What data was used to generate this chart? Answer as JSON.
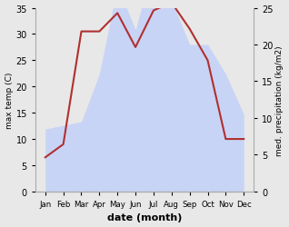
{
  "months": [
    "Jan",
    "Feb",
    "Mar",
    "Apr",
    "May",
    "Jun",
    "Jul",
    "Aug",
    "Sep",
    "Oct",
    "Nov",
    "Dec"
  ],
  "temperature": [
    6.5,
    9.0,
    30.5,
    30.5,
    34.0,
    27.5,
    34.5,
    36.0,
    31.0,
    25.0,
    10.0,
    10.0
  ],
  "precipitation": [
    8.5,
    9.0,
    9.5,
    16.0,
    28.0,
    22.0,
    31.0,
    26.0,
    20.0,
    20.0,
    16.0,
    10.5
  ],
  "temp_color": "#b03030",
  "precip_fill_color": "#c8d4f5",
  "precip_edge_color": "#b0bcee",
  "temp_ylim": [
    0,
    35
  ],
  "precip_ylim": [
    0,
    25
  ],
  "temp_yticks": [
    0,
    5,
    10,
    15,
    20,
    25,
    30,
    35
  ],
  "precip_yticks": [
    0,
    5,
    10,
    15,
    20,
    25
  ],
  "xlabel": "date (month)",
  "ylabel_left": "max temp (C)",
  "ylabel_right": "med. precipitation (kg/m2)",
  "bg_color": "#e8e8e8",
  "plot_bg_color": "#ffffff"
}
